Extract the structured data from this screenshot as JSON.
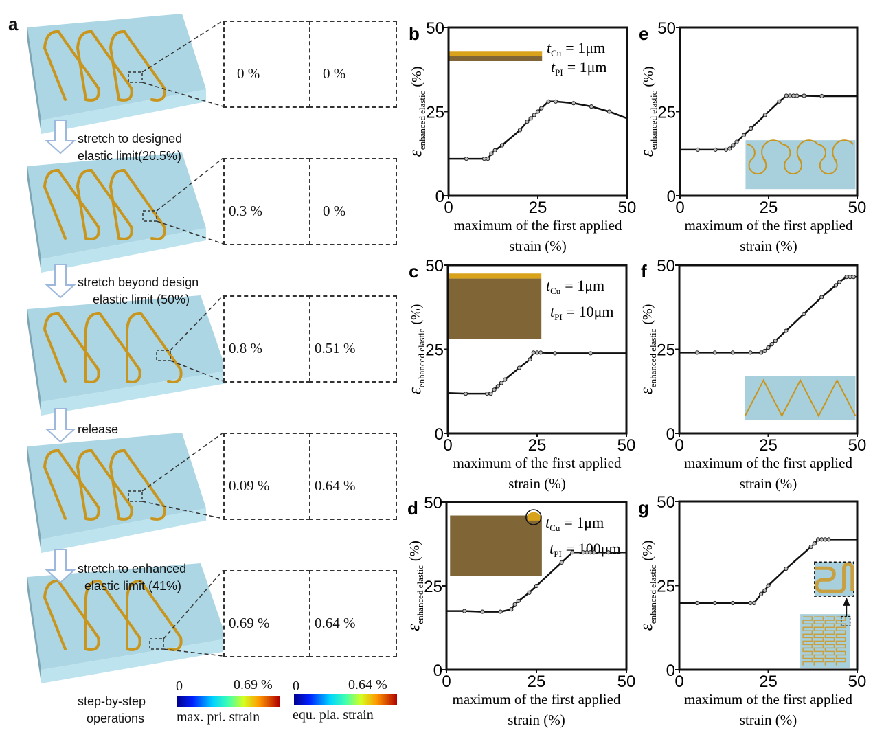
{
  "panel_a": {
    "letter": "a",
    "steps": [
      {
        "arrow_label_1": "",
        "arrow_label_2": ""
      },
      {
        "arrow_label_1": "stretch to designed",
        "arrow_label_2": "elastic limit(20.5%)"
      },
      {
        "arrow_label_1": "stretch beyond design",
        "arrow_label_2": "elastic limit (50%)"
      },
      {
        "arrow_label_1": "release",
        "arrow_label_2": ""
      },
      {
        "arrow_label_1": "stretch to enhanced",
        "arrow_label_2": "elastic limit (41%)"
      }
    ],
    "fem_rows": [
      {
        "left_value": "0 %",
        "right_value": "0 %",
        "left_state": "uniform",
        "right_state": "uniform"
      },
      {
        "left_value": "0.3 %",
        "right_value": "0 %",
        "left_state": "low",
        "right_state": "uniform"
      },
      {
        "left_value": "0.8 %",
        "right_value": "0.51 %",
        "left_state": "high",
        "right_state": "mid"
      },
      {
        "left_value": "0.09 %",
        "right_value": "0.64 %",
        "left_state": "uniform",
        "right_state": "high"
      },
      {
        "left_value": "0.69 %",
        "right_value": "0.64 %",
        "left_state": "high",
        "right_state": "high"
      }
    ],
    "footer_label_1": "step-by-step",
    "footer_label_2": "operations",
    "colorbars": [
      {
        "min": "0",
        "max": "0.69 %",
        "label": "max. pri. strain"
      },
      {
        "min": "0",
        "max": "0.64 %",
        "label": "equ. pla. strain"
      }
    ],
    "colors": {
      "substrate": "#aed6e3",
      "trace": "#c8961e",
      "arrow": "#9db8dc"
    }
  },
  "chart_data": [
    {
      "id": "b",
      "type": "line",
      "title": "",
      "xlabel_1": "maximum of the first applied",
      "xlabel_2": "strain (%)",
      "ylabel_main": "ε",
      "ylabel_sub": "enhanced elastic",
      "ylabel_unit": "(%)",
      "xlim": [
        0,
        50
      ],
      "ylim": [
        0,
        50
      ],
      "xticks": [
        "0",
        "25",
        "50"
      ],
      "yticks": [
        "0",
        "25",
        "50"
      ],
      "x": [
        0,
        5,
        10,
        11,
        12,
        13,
        15,
        20,
        22,
        23,
        24,
        25,
        26,
        28,
        30,
        35,
        40,
        45,
        50
      ],
      "y": [
        11,
        11,
        11,
        11,
        12.5,
        13.5,
        15,
        19.5,
        22,
        23,
        24,
        25,
        26,
        28,
        28,
        27.5,
        26.5,
        25,
        23
      ],
      "annotation_1_var": "t",
      "annotation_1_sub": "Cu",
      "annotation_1_val": "= 1μm",
      "annotation_2_var": "t",
      "annotation_2_sub": "PI",
      "annotation_2_val": "= 1μm",
      "inset": "bilayer-thin"
    },
    {
      "id": "c",
      "type": "line",
      "title": "",
      "xlabel_1": "maximum of the first applied",
      "xlabel_2": "strain (%)",
      "ylabel_main": "ε",
      "ylabel_sub": "enhanced elastic",
      "ylabel_unit": "(%)",
      "xlim": [
        0,
        50
      ],
      "ylim": [
        0,
        50
      ],
      "xticks": [
        "0",
        "25",
        "50"
      ],
      "yticks": [
        "0",
        "25",
        "50"
      ],
      "x": [
        0,
        5,
        11,
        12,
        13,
        14,
        15,
        16,
        20,
        23,
        24,
        25,
        26,
        30,
        40,
        50
      ],
      "y": [
        12,
        11.8,
        11.8,
        11.8,
        13,
        14,
        15,
        16,
        19.5,
        22,
        24,
        24,
        24,
        23.8,
        23.8,
        23.8
      ],
      "annotation_1_var": "t",
      "annotation_1_sub": "Cu",
      "annotation_1_val": "= 1μm",
      "annotation_2_var": "t",
      "annotation_2_sub": "PI",
      "annotation_2_val": "= 10μm",
      "inset": "bilayer-medium"
    },
    {
      "id": "d",
      "type": "line",
      "title": "",
      "xlabel_1": "maximum of the first applied",
      "xlabel_2": "strain (%)",
      "ylabel_main": "ε",
      "ylabel_sub": "enhanced elastic",
      "ylabel_unit": "(%)",
      "xlim": [
        0,
        50
      ],
      "ylim": [
        0,
        50
      ],
      "xticks": [
        "0",
        "25",
        "50"
      ],
      "yticks": [
        "0",
        "25",
        "50"
      ],
      "x": [
        0,
        5,
        10,
        15,
        18,
        19,
        20,
        23,
        25,
        32,
        35,
        38,
        39,
        40,
        41,
        45,
        50
      ],
      "y": [
        17.5,
        17.5,
        17.3,
        17.3,
        18,
        19.5,
        20.5,
        23,
        25,
        32,
        35,
        35,
        35,
        35,
        35,
        35,
        35
      ],
      "annotation_1_var": "t",
      "annotation_1_sub": "Cu",
      "annotation_1_val": "= 1μm",
      "annotation_2_var": "t",
      "annotation_2_sub": "PI",
      "annotation_2_val": "= 100μm",
      "inset": "bilayer-thick"
    },
    {
      "id": "e",
      "type": "line",
      "title": "",
      "xlabel_1": "maximum of the first applied",
      "xlabel_2": "strain (%)",
      "ylabel_main": "ε",
      "ylabel_sub": "enhanced elastic",
      "ylabel_unit": "(%)",
      "xlim": [
        0,
        50
      ],
      "ylim": [
        0,
        50
      ],
      "xticks": [
        "0",
        "25",
        "50"
      ],
      "yticks": [
        "0",
        "25",
        "50"
      ],
      "x": [
        0,
        5,
        10,
        13,
        14,
        15,
        16,
        18,
        20,
        24,
        28,
        30,
        31,
        32,
        33,
        35,
        40,
        50
      ],
      "y": [
        13.7,
        13.7,
        13.7,
        13.7,
        14,
        15,
        16,
        18,
        20,
        24,
        28,
        29.7,
        29.7,
        29.7,
        29.7,
        29.7,
        29.6,
        29.6
      ],
      "inset": "horseshoe"
    },
    {
      "id": "f",
      "type": "line",
      "title": "",
      "xlabel_1": "maximum of the first applied",
      "xlabel_2": "strain (%)",
      "ylabel_main": "ε",
      "ylabel_sub": "enhanced elastic",
      "ylabel_unit": "(%)",
      "xlim": [
        0,
        50
      ],
      "ylim": [
        0,
        50
      ],
      "xticks": [
        "0",
        "25",
        "50"
      ],
      "yticks": [
        "0",
        "25",
        "50"
      ],
      "x": [
        0,
        5,
        10,
        15,
        20,
        23,
        24,
        25,
        26,
        27,
        30,
        35,
        40,
        44,
        45,
        47,
        48,
        49,
        50
      ],
      "y": [
        24,
        24,
        24,
        24,
        24,
        24,
        24.5,
        25.5,
        26.5,
        27.5,
        30.5,
        35.5,
        40.5,
        44,
        45,
        46.5,
        46.5,
        46.5,
        46.5
      ],
      "inset": "zigzag"
    },
    {
      "id": "g",
      "type": "line",
      "title": "",
      "xlabel_1": "maximum of the first applied",
      "xlabel_2": "strain (%)",
      "ylabel_main": "ε",
      "ylabel_sub": "enhanced elastic",
      "ylabel_unit": "(%)",
      "xlim": [
        0,
        50
      ],
      "ylim": [
        0,
        50
      ],
      "xticks": [
        "0",
        "25",
        "50"
      ],
      "yticks": [
        "0",
        "25",
        "50"
      ],
      "x": [
        0,
        5,
        10,
        15,
        20,
        21,
        23,
        24,
        25,
        30,
        37,
        38,
        39,
        40,
        41,
        42,
        50
      ],
      "y": [
        19.8,
        19.8,
        19.8,
        19.8,
        19.8,
        19.8,
        22.5,
        23.5,
        25,
        30,
        36.5,
        37.5,
        38.7,
        38.7,
        38.7,
        38.7,
        38.7
      ],
      "inset": "fractal-serpentine"
    }
  ]
}
